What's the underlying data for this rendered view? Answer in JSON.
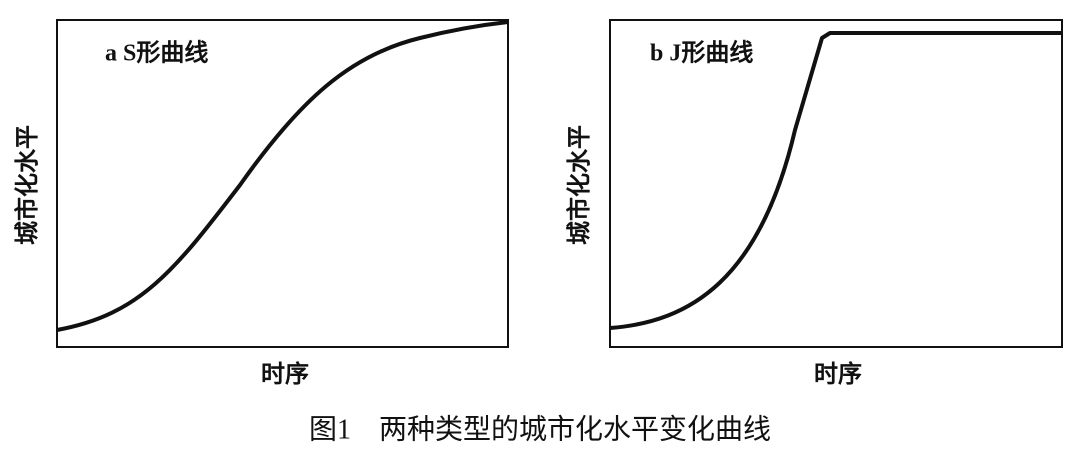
{
  "panels": [
    {
      "label": "a S形曲线",
      "y_axis": "城市化水平",
      "x_axis": "时序"
    },
    {
      "label": "b J形曲线",
      "y_axis": "城市化水平",
      "x_axis": "时序"
    }
  ],
  "caption": "图1　两种类型的城市化水平变化曲线"
}
